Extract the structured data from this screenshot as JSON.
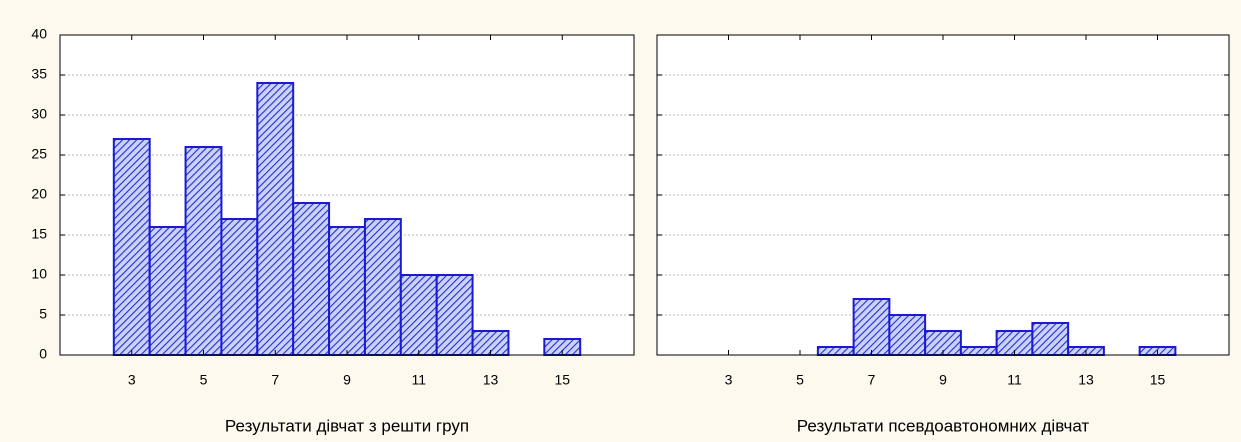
{
  "chart_data": [
    {
      "type": "histogram",
      "xlabel": "Результати дівчат з решти груп",
      "bins": [
        2.5,
        3.5,
        4.5,
        5.5,
        6.5,
        7.5,
        8.5,
        9.5,
        10.5,
        11.5,
        12.5,
        13.5,
        14.5,
        15.5
      ],
      "values": [
        27,
        16,
        26,
        17,
        34,
        19,
        16,
        17,
        10,
        10,
        3,
        0,
        2
      ],
      "color": "#1a1ad6",
      "xlim": [
        1,
        17
      ],
      "xticks": [
        3,
        5,
        7,
        9,
        11,
        13,
        15
      ],
      "ylim": [
        0,
        40
      ],
      "yticks": [
        0,
        5,
        10,
        15,
        20,
        25,
        30,
        35,
        40
      ],
      "grid": true
    },
    {
      "type": "histogram",
      "xlabel": "Результати псевдоавтономних дівчат",
      "bins": [
        2.5,
        3.5,
        4.5,
        5.5,
        6.5,
        7.5,
        8.5,
        9.5,
        10.5,
        11.5,
        12.5,
        13.5,
        14.5,
        15.5
      ],
      "values": [
        0,
        0,
        0,
        1,
        7,
        5,
        3,
        1,
        3,
        4,
        1,
        0,
        1
      ],
      "color": "#1a1ad6",
      "xlim": [
        1,
        17
      ],
      "xticks": [
        3,
        5,
        7,
        9,
        11,
        13,
        15
      ],
      "ylim": [
        0,
        40
      ],
      "sharey": true,
      "grid": true
    }
  ]
}
